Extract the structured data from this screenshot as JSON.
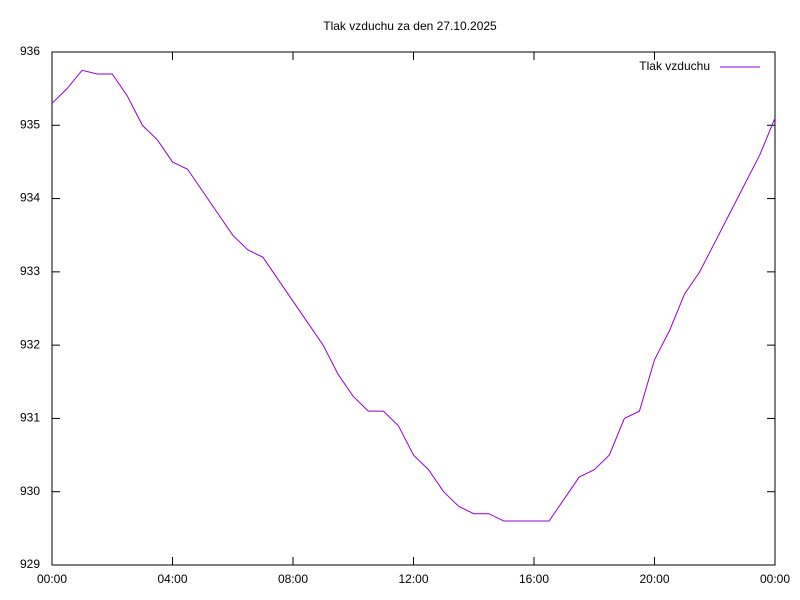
{
  "chart_data": {
    "type": "line",
    "title": "Tlak vzduchu za den 27.10.2025",
    "x": [
      0,
      0.5,
      1,
      1.5,
      2,
      2.5,
      3,
      3.5,
      4,
      4.5,
      5,
      5.5,
      6,
      6.5,
      7,
      7.5,
      8,
      8.5,
      9,
      9.5,
      10,
      10.5,
      11,
      11.5,
      12,
      12.5,
      13,
      13.5,
      14,
      14.5,
      15,
      15.5,
      16,
      16.5,
      17,
      17.5,
      18,
      18.5,
      19,
      19.5,
      20,
      20.5,
      21,
      21.5,
      22,
      22.5,
      23,
      23.5,
      24
    ],
    "series": [
      {
        "name": "Tlak vzduchu",
        "color": "#9400d3",
        "values": [
          935.3,
          935.5,
          935.75,
          935.7,
          935.7,
          935.4,
          935.0,
          934.8,
          934.5,
          934.4,
          934.1,
          933.8,
          933.5,
          933.3,
          933.2,
          932.9,
          932.6,
          932.3,
          932.0,
          931.6,
          931.3,
          931.1,
          931.1,
          930.9,
          930.5,
          930.3,
          930.0,
          929.8,
          929.7,
          929.7,
          929.6,
          929.6,
          929.6,
          929.6,
          929.9,
          930.2,
          930.3,
          930.5,
          931.0,
          931.1,
          931.8,
          932.2,
          932.7,
          933.0,
          933.4,
          933.8,
          934.2,
          934.6,
          935.1
        ]
      }
    ],
    "xlim": [
      0,
      24
    ],
    "xticks": [
      {
        "value": 0,
        "label": "00:00"
      },
      {
        "value": 4,
        "label": "04:00"
      },
      {
        "value": 8,
        "label": "08:00"
      },
      {
        "value": 12,
        "label": "12:00"
      },
      {
        "value": 16,
        "label": "16:00"
      },
      {
        "value": 20,
        "label": "20:00"
      },
      {
        "value": 24,
        "label": "00:00"
      }
    ],
    "ylim": [
      929,
      936
    ],
    "yticks": [
      929,
      930,
      931,
      932,
      933,
      934,
      935,
      936
    ],
    "legend": "top-right"
  }
}
